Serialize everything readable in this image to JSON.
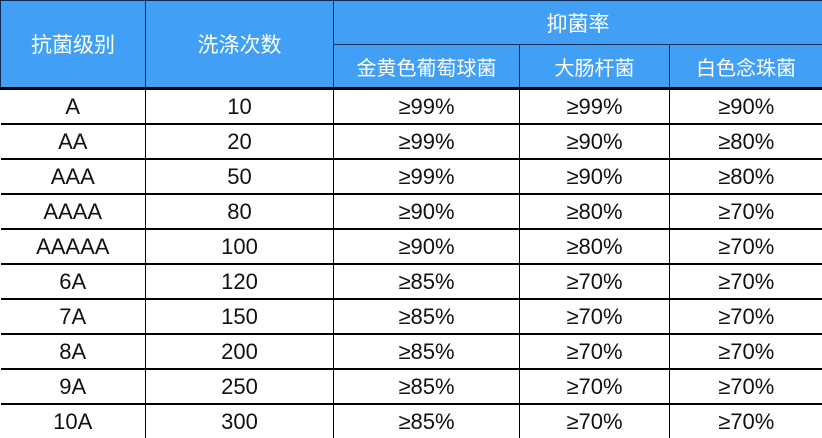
{
  "colors": {
    "header_bg": "#41A0F5",
    "header_text": "#FFFFFF",
    "header_border": "#0D2A52",
    "body_border": "#000000",
    "body_text": "#111111",
    "body_bg": "#FFFFFF"
  },
  "table": {
    "headers": {
      "level": "抗菌级别",
      "washes": "洗涤次数",
      "inhibition_group": "抑菌率",
      "staph": "金黄色葡萄球菌",
      "ecoli": "大肠杆菌",
      "candida": "白色念珠菌"
    },
    "rows": [
      [
        "A",
        "10",
        "≥99%",
        "≥99%",
        "≥90%"
      ],
      [
        "AA",
        "20",
        "≥99%",
        "≥90%",
        "≥80%"
      ],
      [
        "AAA",
        "50",
        "≥99%",
        "≥90%",
        "≥80%"
      ],
      [
        "AAAA",
        "80",
        "≥90%",
        "≥80%",
        "≥70%"
      ],
      [
        "AAAAA",
        "100",
        "≥90%",
        "≥80%",
        "≥70%"
      ],
      [
        "6A",
        "120",
        "≥85%",
        "≥70%",
        "≥70%"
      ],
      [
        "7A",
        "150",
        "≥85%",
        "≥70%",
        "≥70%"
      ],
      [
        "8A",
        "200",
        "≥85%",
        "≥70%",
        "≥70%"
      ],
      [
        "9A",
        "250",
        "≥85%",
        "≥70%",
        "≥70%"
      ],
      [
        "10A",
        "300",
        "≥85%",
        "≥70%",
        "≥70%"
      ]
    ]
  },
  "chart_data": {
    "type": "table",
    "title": "抑菌率",
    "columns": [
      "抗菌级别",
      "洗涤次数",
      "金黄色葡萄球菌",
      "大肠杆菌",
      "白色念珠菌"
    ],
    "rows": [
      [
        "A",
        "10",
        "≥99%",
        "≥99%",
        "≥90%"
      ],
      [
        "AA",
        "20",
        "≥99%",
        "≥90%",
        "≥80%"
      ],
      [
        "AAA",
        "50",
        "≥99%",
        "≥90%",
        "≥80%"
      ],
      [
        "AAAA",
        "80",
        "≥90%",
        "≥80%",
        "≥70%"
      ],
      [
        "AAAAA",
        "100",
        "≥90%",
        "≥80%",
        "≥70%"
      ],
      [
        "6A",
        "120",
        "≥85%",
        "≥70%",
        "≥70%"
      ],
      [
        "7A",
        "150",
        "≥85%",
        "≥70%",
        "≥70%"
      ],
      [
        "8A",
        "200",
        "≥85%",
        "≥70%",
        "≥70%"
      ],
      [
        "9A",
        "250",
        "≥85%",
        "≥70%",
        "≥70%"
      ],
      [
        "10A",
        "300",
        "≥85%",
        "≥70%",
        "≥70%"
      ]
    ]
  }
}
